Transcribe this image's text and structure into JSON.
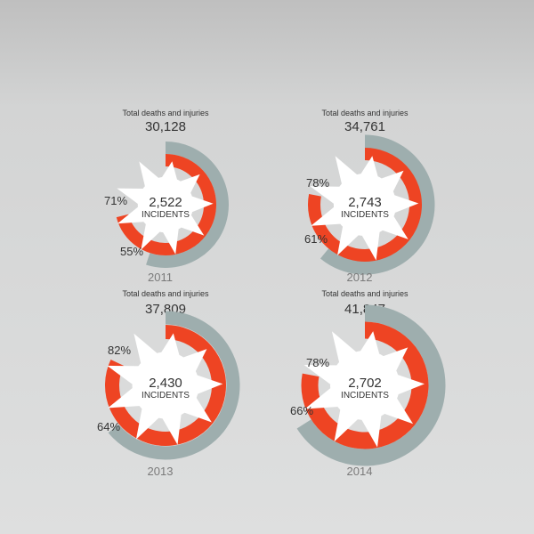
{
  "colors": {
    "injuries": "#9eaeae",
    "deaths": "#ee4423",
    "burst": "#ffffff",
    "text": "#333333",
    "year": "#7a7a7a"
  },
  "chart_data": [
    {
      "type": "radial-bar",
      "year": "2011",
      "total_label": "Total deaths and injuries",
      "total": "30,128",
      "incidents": "2,522",
      "incidents_label": "INCIDENTS",
      "outer_pct": 55,
      "inner_pct": 71,
      "outer_label": "55%",
      "inner_label": "71%"
    },
    {
      "type": "radial-bar",
      "year": "2012",
      "total_label": "Total deaths and injuries",
      "total": "34,761",
      "incidents": "2,743",
      "incidents_label": "INCIDENTS",
      "outer_pct": 61,
      "inner_pct": 78,
      "outer_label": "61%",
      "inner_label": "78%"
    },
    {
      "type": "radial-bar",
      "year": "2013",
      "total_label": "Total deaths and injuries",
      "total": "37,809",
      "incidents": "2,430",
      "incidents_label": "INCIDENTS",
      "outer_pct": 64,
      "inner_pct": 82,
      "outer_label": "64%",
      "inner_label": "82%"
    },
    {
      "type": "radial-bar",
      "year": "2014",
      "total_label": "Total deaths and injuries",
      "total": "41,847",
      "incidents": "2,702",
      "incidents_label": "INCIDENTS",
      "outer_pct": 66,
      "inner_pct": 78,
      "outer_label": "66%",
      "inner_label": "78%"
    }
  ]
}
